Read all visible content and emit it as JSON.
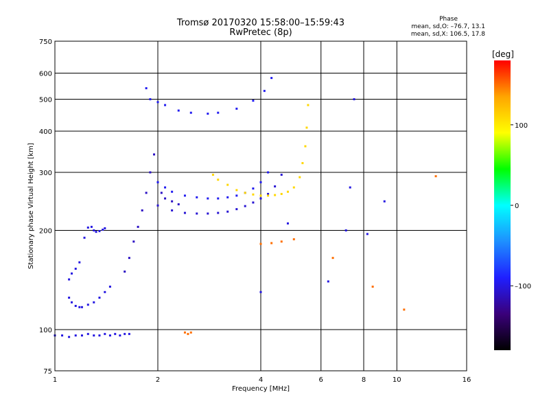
{
  "header": {
    "title_line1": "Tromsø 20170320 15:58:00–15:59:43",
    "title_line2": "RwPretec (8p)",
    "stats_title": "Phase",
    "stats_o": "mean, sd,O: –76.7, 13.1",
    "stats_x": "mean, sd,X: 106.5, 17.8"
  },
  "colorbar": {
    "unit": "[deg]",
    "ticks": [
      {
        "value": 100,
        "label": "100"
      },
      {
        "value": 0,
        "label": "0"
      },
      {
        "value": -100,
        "label": "–100"
      }
    ],
    "range": [
      -180,
      180
    ],
    "colors": [
      "#000000",
      "#3a007a",
      "#1f1fff",
      "#1e8fff",
      "#00ffff",
      "#00ff00",
      "#ffff00",
      "#ffa500",
      "#ff0000"
    ]
  },
  "chart_data": {
    "type": "scatter",
    "xlabel": "Frequency [MHz]",
    "ylabel": "Stationary phase Virtual Height [km]",
    "xscale": "log",
    "yscale": "log",
    "xlim": [
      1,
      16
    ],
    "ylim": [
      75,
      750
    ],
    "x_ticks": [
      {
        "v": 1,
        "label": "1"
      },
      {
        "v": 2,
        "label": "2"
      },
      {
        "v": 4,
        "label": "4"
      },
      {
        "v": 6,
        "label": "6"
      },
      {
        "v": 8,
        "label": "8"
      },
      {
        "v": 10,
        "label": "10"
      },
      {
        "v": 16,
        "label": "16"
      }
    ],
    "y_ticks": [
      {
        "v": 75,
        "label": "75"
      },
      {
        "v": 100,
        "label": "100"
      },
      {
        "v": 200,
        "label": "200"
      },
      {
        "v": 300,
        "label": "300"
      },
      {
        "v": 400,
        "label": "400"
      },
      {
        "v": 500,
        "label": "500"
      },
      {
        "v": 600,
        "label": "600"
      },
      {
        "v": 750,
        "label": "750"
      }
    ],
    "grid": true,
    "color_by": "phase_deg",
    "series": [
      {
        "trace": "E",
        "phase": -100,
        "x": [
          1.0,
          1.05,
          1.1,
          1.15,
          1.2,
          1.25,
          1.3,
          1.35,
          1.4,
          1.45,
          1.5,
          1.55,
          1.6,
          1.65
        ],
        "y": [
          96,
          96,
          95,
          96,
          96,
          97,
          96,
          96,
          97,
          96,
          97,
          96,
          97,
          97
        ]
      },
      {
        "trace": "F1-low-a",
        "phase": -100,
        "x": [
          1.1,
          1.12,
          1.15,
          1.18,
          1.2,
          1.25,
          1.3,
          1.35,
          1.4,
          1.45
        ],
        "y": [
          125,
          121,
          118,
          117,
          117,
          119,
          121,
          125,
          130,
          135
        ]
      },
      {
        "trace": "F1-low-b",
        "phase": -100,
        "x": [
          1.1,
          1.12,
          1.15,
          1.18
        ],
        "y": [
          142,
          148,
          153,
          160
        ]
      },
      {
        "trace": "F1-low-c",
        "phase": -100,
        "x": [
          1.22,
          1.25,
          1.28,
          1.3,
          1.32,
          1.35,
          1.38,
          1.4
        ],
        "y": [
          190,
          204,
          205,
          200,
          198,
          199,
          201,
          203
        ]
      },
      {
        "trace": "F-cusp",
        "phase": -110,
        "x": [
          1.6,
          1.65,
          1.7,
          1.75,
          1.8,
          1.85,
          1.9,
          1.95,
          2.0,
          2.05,
          2.1,
          2.2,
          2.3
        ],
        "y": [
          150,
          165,
          185,
          205,
          230,
          260,
          300,
          340,
          280,
          260,
          250,
          245,
          240
        ]
      },
      {
        "trace": "F2-O",
        "phase": -105,
        "x": [
          2.0,
          2.2,
          2.4,
          2.6,
          2.8,
          3.0,
          3.2,
          3.4,
          3.6,
          3.8,
          4.0,
          4.2,
          4.4,
          4.6
        ],
        "y": [
          238,
          230,
          226,
          225,
          225,
          226,
          228,
          232,
          237,
          243,
          250,
          258,
          272,
          295
        ]
      },
      {
        "trace": "F2-scatter",
        "phase": -95,
        "x": [
          2.0,
          2.1,
          2.2,
          2.4,
          2.6,
          2.8,
          3.0,
          3.2,
          3.4,
          3.6,
          3.8,
          4.0,
          4.2
        ],
        "y": [
          280,
          270,
          262,
          255,
          252,
          250,
          250,
          252,
          255,
          260,
          268,
          280,
          300
        ]
      },
      {
        "trace": "F2-X",
        "phase": 110,
        "x": [
          2.9,
          3.0,
          3.2,
          3.4,
          3.6,
          3.8,
          4.0,
          4.2,
          4.4,
          4.6,
          4.8,
          5.0,
          5.2,
          5.3,
          5.4,
          5.45,
          5.5
        ],
        "y": [
          295,
          285,
          275,
          265,
          260,
          257,
          255,
          255,
          256,
          258,
          262,
          270,
          290,
          320,
          360,
          410,
          480
        ]
      },
      {
        "trace": "F-upper",
        "phase": -95,
        "x": [
          1.85,
          1.9,
          2.0,
          2.1,
          2.3,
          2.5,
          2.8,
          3.0,
          3.4,
          3.8,
          4.1,
          4.3
        ],
        "y": [
          540,
          500,
          490,
          480,
          462,
          455,
          452,
          455,
          468,
          495,
          530,
          580
        ]
      },
      {
        "trace": "sporadic",
        "phase": 150,
        "x": [
          2.4,
          2.45,
          2.5,
          4.0,
          4.3,
          4.6,
          5.0,
          6.5,
          8.5,
          10.5,
          13.0
        ],
        "y": [
          98,
          97,
          98,
          182,
          183,
          185,
          188,
          165,
          135,
          115,
          292
        ]
      },
      {
        "trace": "sporadic-b",
        "phase": -100,
        "x": [
          4.0,
          4.8,
          6.3,
          7.1,
          7.3,
          7.5,
          8.2,
          9.2
        ],
        "y": [
          130,
          210,
          140,
          200,
          270,
          500,
          195,
          245
        ]
      }
    ]
  }
}
